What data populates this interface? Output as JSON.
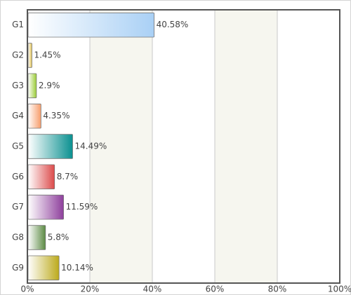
{
  "chart_data": {
    "type": "bar",
    "orientation": "horizontal",
    "categories": [
      "G1",
      "G2",
      "G3",
      "G4",
      "G5",
      "G6",
      "G7",
      "G8",
      "G9"
    ],
    "values": [
      40.58,
      1.45,
      2.9,
      4.35,
      14.49,
      8.7,
      11.59,
      5.8,
      10.14
    ],
    "value_labels": [
      "40.58%",
      "1.45%",
      "2.9%",
      "4.35%",
      "14.49%",
      "8.7%",
      "11.59%",
      "5.8%",
      "10.14%"
    ],
    "colors": [
      "#a9d0f5",
      "#e0c050",
      "#99cc33",
      "#f79c6a",
      "#0a9090",
      "#dc4a4a",
      "#8e3f9c",
      "#5b8a43",
      "#bcaa1c"
    ],
    "xlim": [
      0,
      100
    ],
    "xticks": [
      {
        "value": 0,
        "label": "0%"
      },
      {
        "value": 20,
        "label": "20%"
      },
      {
        "value": 40,
        "label": "40%"
      },
      {
        "value": 60,
        "label": "60%"
      },
      {
        "value": 80,
        "label": "80%"
      },
      {
        "value": 100,
        "label": "100%"
      }
    ],
    "grid": true
  }
}
